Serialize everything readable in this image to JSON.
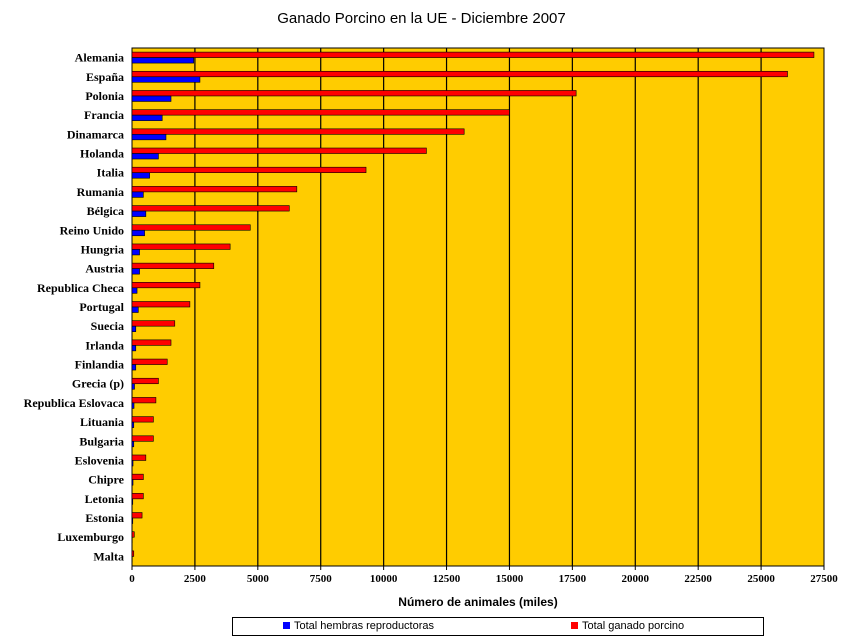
{
  "chart_data": {
    "type": "bar",
    "orientation": "horizontal",
    "title": "Ganado Porcino en la UE - Diciembre 2007",
    "xlabel": "Número de animales (miles)",
    "xlim": [
      0,
      27500
    ],
    "xticks": [
      0,
      2500,
      5000,
      7500,
      10000,
      12500,
      15000,
      17500,
      20000,
      22500,
      25000,
      27500
    ],
    "categories": [
      "Alemania",
      "España",
      "Polonia",
      "Francia",
      "Dinamarca",
      "Holanda",
      "Italia",
      "Rumania",
      "Bélgica",
      "Reino Unido",
      "Hungria",
      "Austria",
      "Republica Checa",
      "Portugal",
      "Suecia",
      "Irlanda",
      "Finlandia",
      "Grecia (p)",
      "Republica Eslovaca",
      "Lituania",
      "Bulgaria",
      "Eslovenia",
      "Chipre",
      "Letonia",
      "Estonia",
      "Luxemburgo",
      "Malta"
    ],
    "series": [
      {
        "name": "Total hembras reproductoras",
        "color": "#0000ff",
        "values": [
          2450,
          2700,
          1550,
          1200,
          1350,
          1050,
          700,
          450,
          550,
          500,
          300,
          300,
          200,
          250,
          150,
          150,
          150,
          100,
          80,
          70,
          70,
          40,
          40,
          30,
          30,
          10,
          10
        ]
      },
      {
        "name": "Total ganado porcino",
        "color": "#ff0000",
        "values": [
          27100,
          26050,
          17650,
          15000,
          13200,
          11700,
          9300,
          6550,
          6250,
          4700,
          3900,
          3250,
          2700,
          2300,
          1700,
          1550,
          1400,
          1050,
          950,
          850,
          850,
          550,
          450,
          450,
          400,
          90,
          70
        ]
      }
    ],
    "grid": true,
    "plot_background": "#ffcc00",
    "legend_position": "bottom"
  }
}
